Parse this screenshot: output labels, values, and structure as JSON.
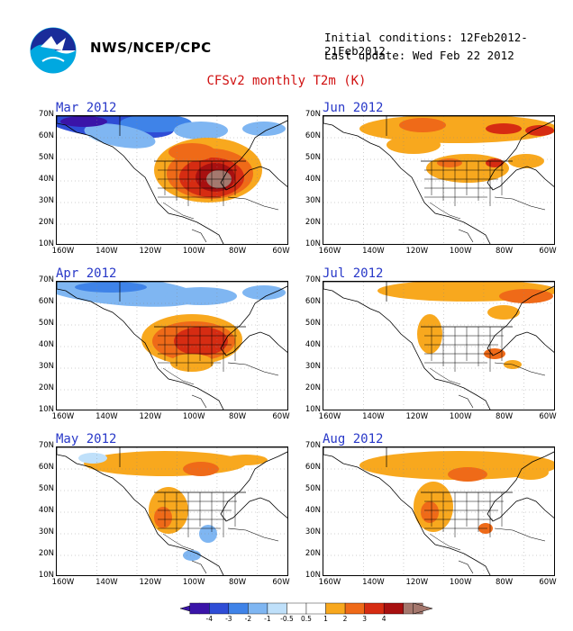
{
  "header": {
    "org": "NWS/NCEP/CPC",
    "initial_conditions": "Initial conditions: 12Feb2012-21Feb2012",
    "last_update": "Last update: Wed Feb 22 2012",
    "title": "CFSv2 monthly T2m (K)"
  },
  "colors": {
    "title": "#d01010",
    "panel_title": "#2838c8",
    "scale": [
      "#3a14a8",
      "#2f4dd6",
      "#3f83e8",
      "#7fb6f2",
      "#bfe0fa",
      "#ffffff",
      "#ffffff",
      "#f8a81e",
      "#ef6a18",
      "#d62c12",
      "#a81010",
      "#a5786e"
    ]
  },
  "axes": {
    "lat_labels": [
      "70N",
      "60N",
      "50N",
      "40N",
      "30N",
      "20N",
      "10N"
    ],
    "lon_labels": [
      "160W",
      "140W",
      "120W",
      "100W",
      "80W",
      "60W"
    ]
  },
  "panels": [
    {
      "title": "Mar 2012",
      "pattern": "cold-north-warm-east"
    },
    {
      "title": "Jun 2012",
      "pattern": "warm-north-warm-central"
    },
    {
      "title": "Apr 2012",
      "pattern": "cold-north-warm-central"
    },
    {
      "title": "Jul 2012",
      "pattern": "warm-patchy"
    },
    {
      "title": "May 2012",
      "pattern": "warm-west"
    },
    {
      "title": "Aug 2012",
      "pattern": "warm-west-north"
    }
  ],
  "colorbar": {
    "labels": [
      "-4",
      "-3",
      "-2",
      "-1",
      "-0.5",
      "0.5",
      "1",
      "2",
      "3",
      "4"
    ]
  }
}
